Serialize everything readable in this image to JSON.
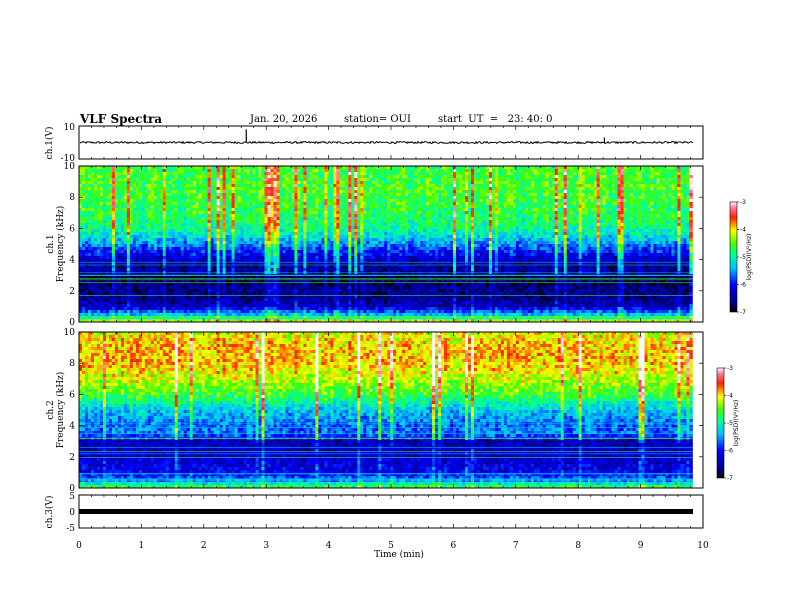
{
  "header": {
    "title": "VLF Spectra",
    "date": "Jan. 20, 2026",
    "station": "station= OUI",
    "start": "start  UT  =   23: 40: 0"
  },
  "chart_data": [
    {
      "type": "line",
      "name": "ch1-waveform",
      "ylabel": "ch.1(V)",
      "ylim": [
        -10,
        10
      ],
      "yticks": [
        "10",
        "-10"
      ],
      "xlim": [
        0,
        10
      ],
      "level": 0,
      "noise_amplitude": 0.6,
      "spikes": [
        {
          "x": 2.68,
          "y": 8
        },
        {
          "x": 8.42,
          "y": 3
        }
      ]
    },
    {
      "type": "heatmap",
      "name": "ch1-spectrogram",
      "ylabel": "ch.1\nFrequency (kHz)",
      "ylim": [
        0,
        10
      ],
      "yticks": [
        "0",
        "2",
        "4",
        "6",
        "8",
        "10"
      ],
      "xlim": [
        0,
        10
      ],
      "data_extent_x": [
        0,
        9.83
      ],
      "colorbar": {
        "label": "log(PSD)(V²/Hz)",
        "range": [
          -7,
          -3
        ],
        "ticks": [
          "-3",
          "-4",
          "-5",
          "-6",
          "-7"
        ]
      },
      "freq_profile_kHz": [
        0,
        0.4,
        1,
        1.6,
        2.2,
        2.8,
        3.2,
        3.8,
        4.4,
        5.2,
        6,
        7,
        8,
        9,
        10
      ],
      "level_profile": [
        -3.8,
        -5.2,
        -6.4,
        -6.6,
        -6.6,
        -6.9,
        -6.5,
        -6.5,
        -6,
        -5.4,
        -4.9,
        -4.7,
        -4.6,
        -4.6,
        -4.6
      ]
    },
    {
      "type": "heatmap",
      "name": "ch2-spectrogram",
      "ylabel": "ch.2\nFrequency (kHz)",
      "ylim": [
        0,
        10
      ],
      "yticks": [
        "0",
        "2",
        "4",
        "6",
        "8",
        "10"
      ],
      "xlim": [
        0,
        10
      ],
      "data_extent_x": [
        0,
        9.83
      ],
      "colorbar": {
        "label": "log(PSD)(V²/Hz)",
        "range": [
          -7,
          -3
        ],
        "ticks": [
          "-3",
          "-4",
          "-5",
          "-6",
          "-7"
        ]
      },
      "freq_profile_kHz": [
        0,
        0.5,
        1,
        2,
        3,
        3.5,
        4,
        5,
        6,
        7,
        8,
        9,
        10
      ],
      "level_profile": [
        -4.5,
        -5.6,
        -6.1,
        -6.3,
        -6.4,
        -5.6,
        -5.7,
        -5.3,
        -4.6,
        -4.2,
        -3.9,
        -3.9,
        -4.1
      ]
    },
    {
      "type": "line",
      "name": "ch3-waveform",
      "ylabel": "ch.3(V)",
      "ylim": [
        -5,
        5
      ],
      "yticks": [
        "5",
        "0",
        "-5"
      ],
      "xlim": [
        0,
        10
      ],
      "xlabel": "Time (min)",
      "xticks": [
        "0",
        "1",
        "2",
        "3",
        "4",
        "5",
        "6",
        "7",
        "8",
        "9",
        "10"
      ],
      "level": 0
    }
  ]
}
